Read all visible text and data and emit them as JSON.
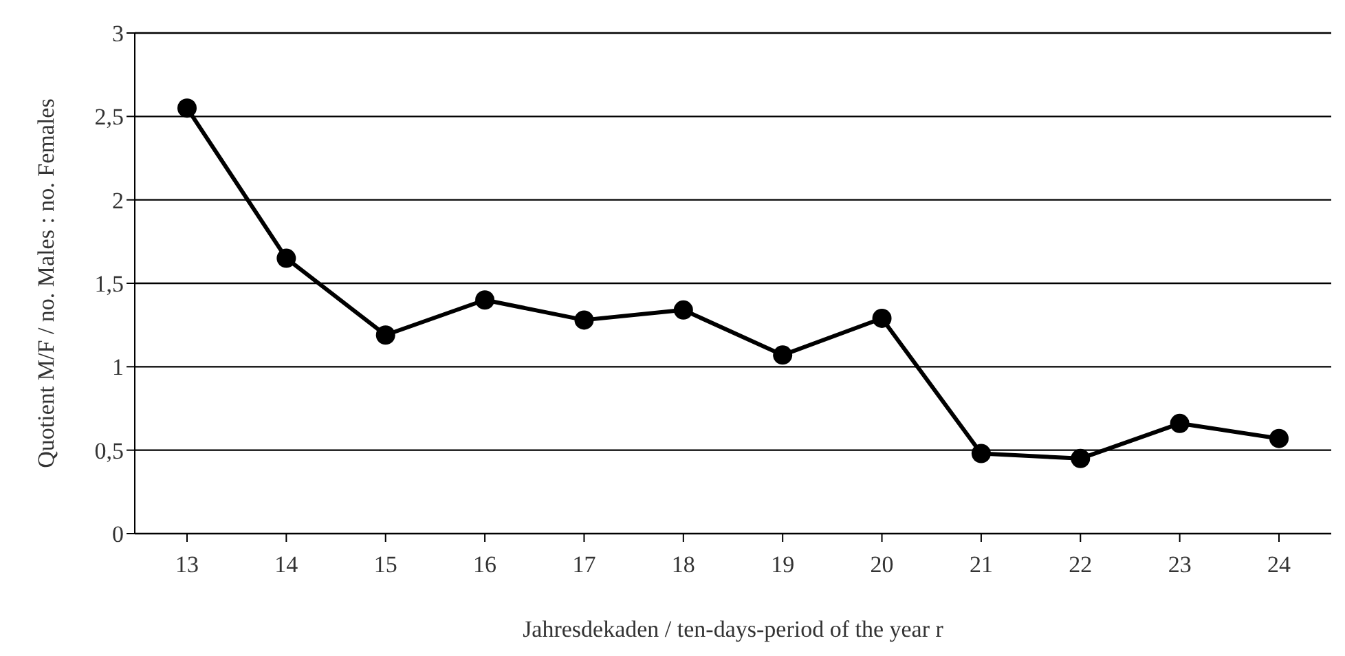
{
  "chart_data": {
    "type": "line",
    "xlabel": "Jahresdekaden / ten-days-period of the year r",
    "ylabel": "Quotient M/F / no. Males : no. Females",
    "categories": [
      "13",
      "14",
      "15",
      "16",
      "17",
      "18",
      "19",
      "20",
      "21",
      "22",
      "23",
      "24"
    ],
    "series": [
      {
        "color": "#000000",
        "values": [
          2.55,
          1.65,
          1.19,
          1.4,
          1.28,
          1.34,
          1.07,
          1.29,
          0.48,
          0.45,
          0.66,
          0.57
        ]
      }
    ],
    "ylim": [
      0,
      3
    ],
    "yticks": [
      0,
      {
        "value": 0.5,
        "label": "0,5"
      },
      1,
      {
        "value": 1.5,
        "label": "1,5"
      },
      2,
      {
        "value": 2.5,
        "label": "2,5"
      },
      3
    ],
    "grid": "y",
    "marker": "circle",
    "line_style": "solid",
    "legend": false
  }
}
